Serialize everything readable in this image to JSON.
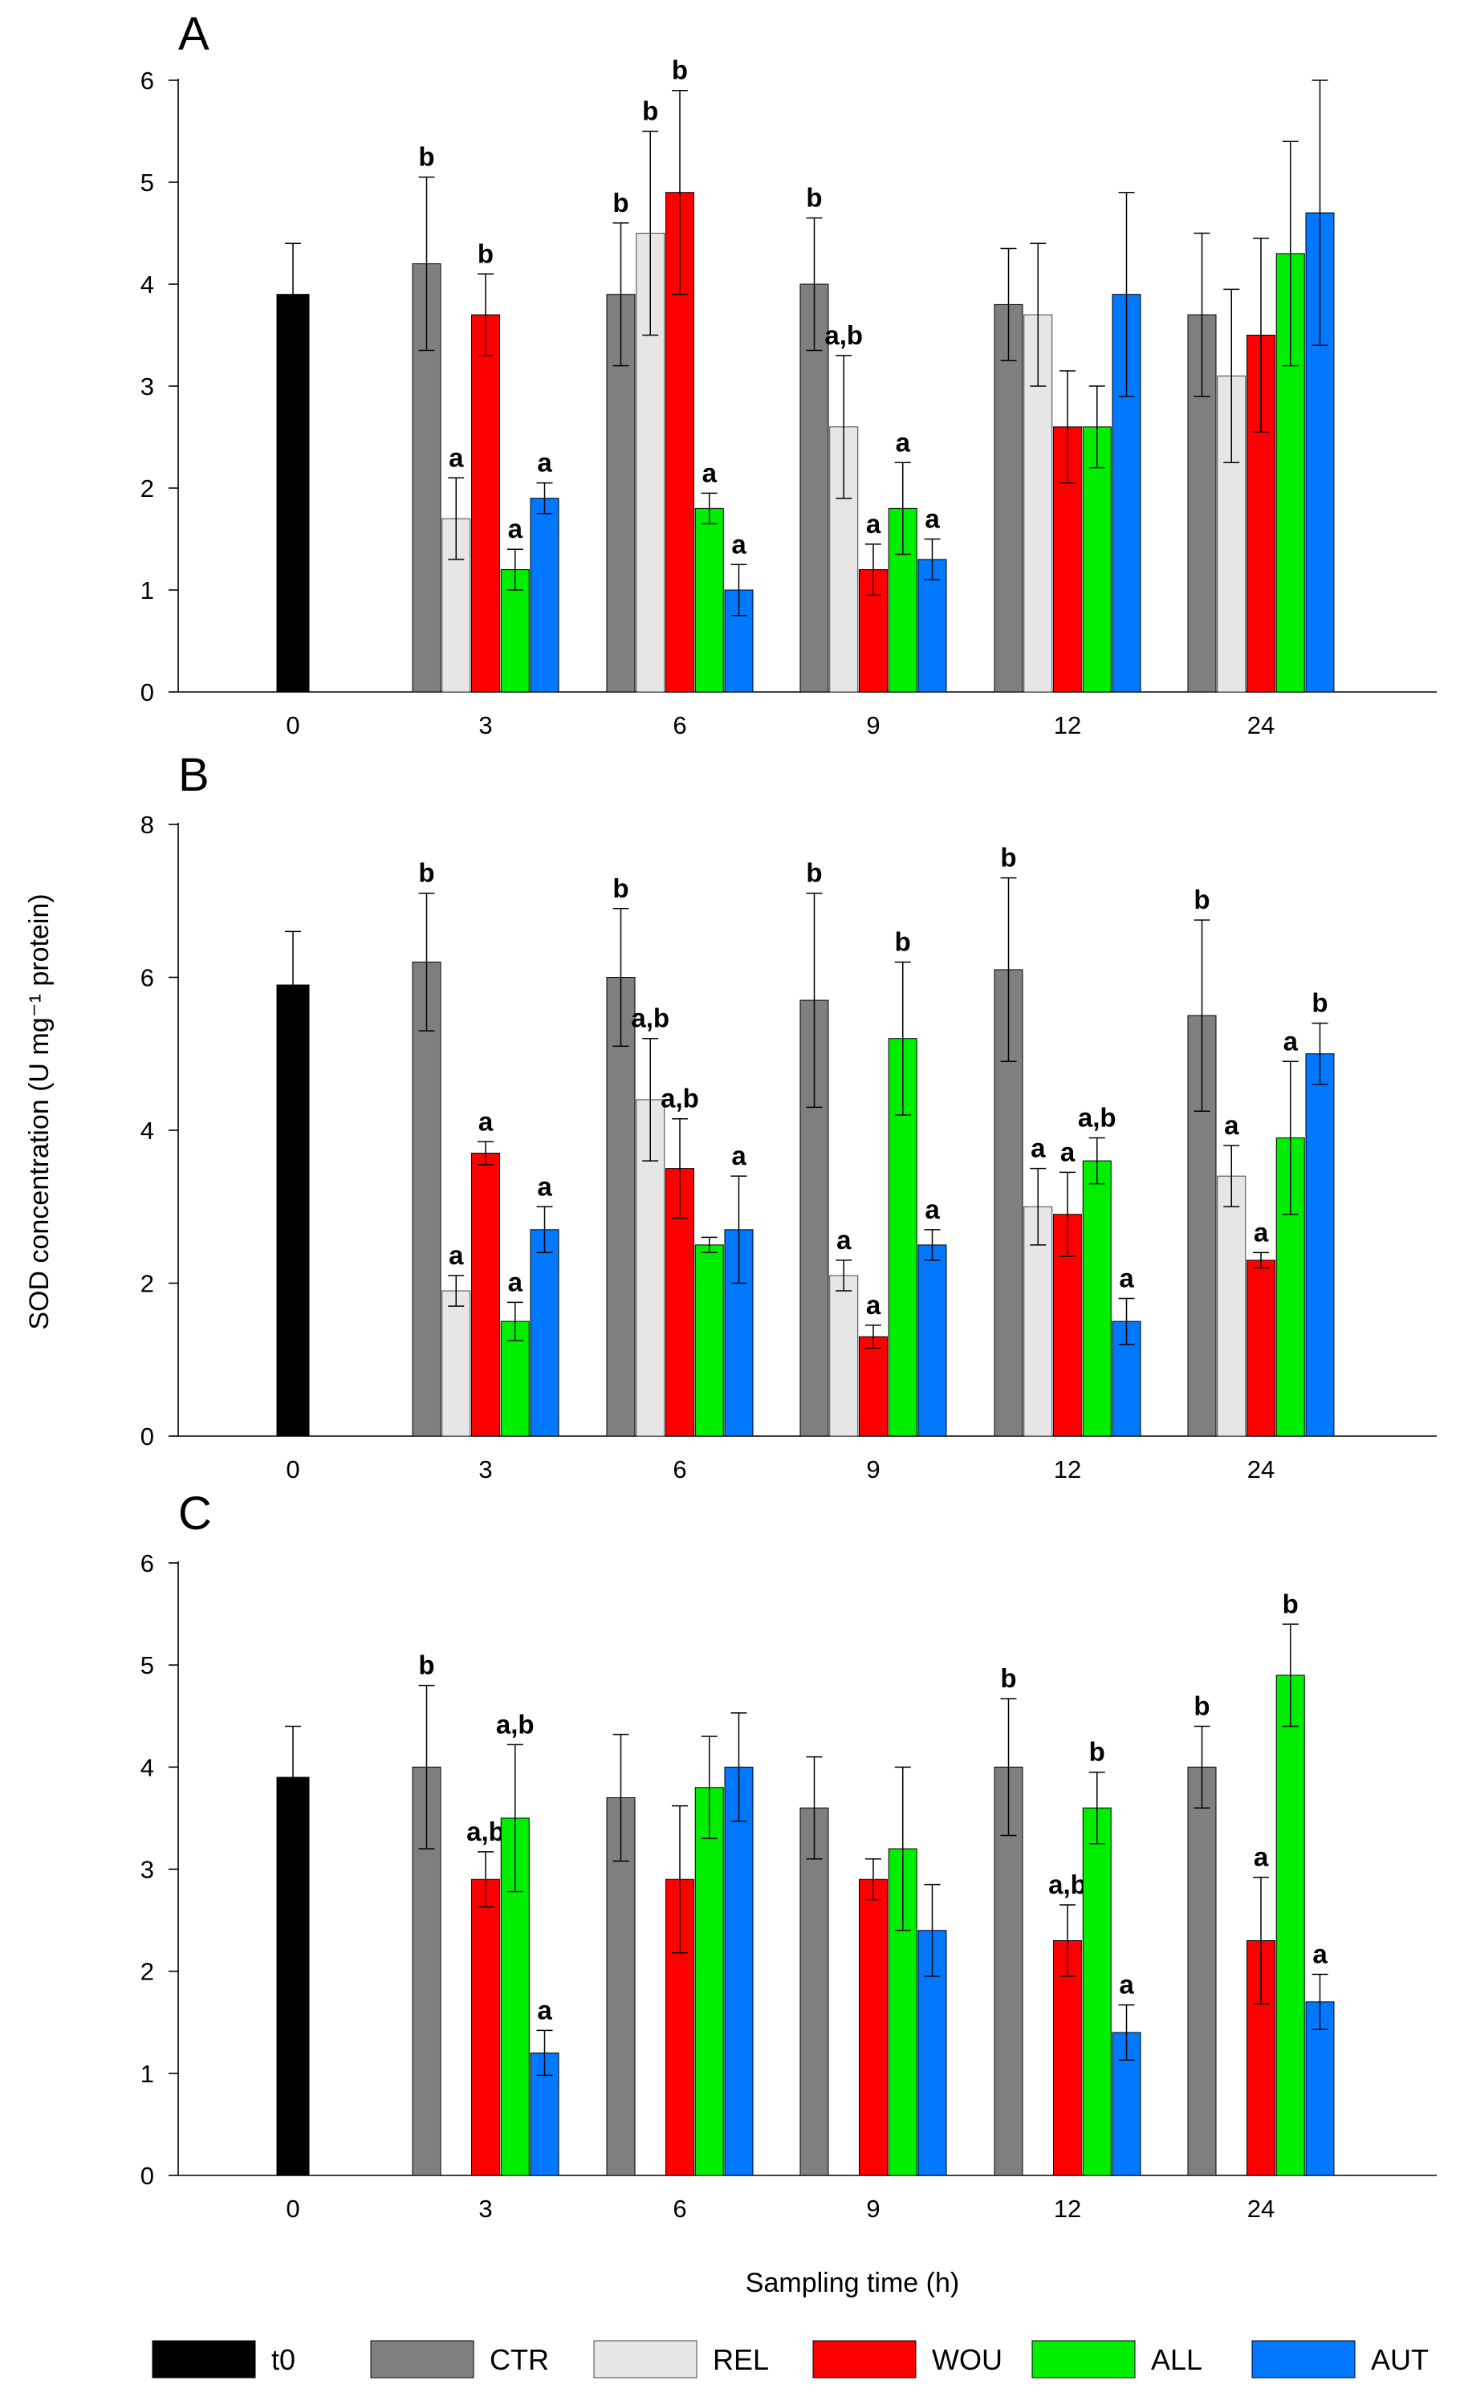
{
  "chart_data": [
    {
      "type": "bar",
      "panel": "A",
      "categories": [
        "0",
        "3",
        "6",
        "9",
        "12",
        "24"
      ],
      "ylim": [
        0,
        6
      ],
      "yticks": [
        0,
        1,
        2,
        3,
        4,
        5,
        6
      ],
      "series": [
        {
          "name": "t0",
          "values": [
            3.9,
            null,
            null,
            null,
            null,
            null
          ],
          "errors": [
            0.5,
            null,
            null,
            null,
            null,
            null
          ],
          "labels": [
            "",
            "",
            "",
            "",
            "",
            ""
          ]
        },
        {
          "name": "CTR",
          "values": [
            null,
            4.2,
            3.9,
            4.0,
            3.8,
            3.7
          ],
          "errors": [
            null,
            0.85,
            0.7,
            0.65,
            0.55,
            0.8
          ],
          "labels": [
            "",
            "b",
            "b",
            "b",
            "",
            ""
          ]
        },
        {
          "name": "REL",
          "values": [
            null,
            1.7,
            4.5,
            2.6,
            3.7,
            3.1
          ],
          "errors": [
            null,
            0.4,
            1.0,
            0.7,
            0.7,
            0.85
          ],
          "labels": [
            "",
            "a",
            "b",
            "a,b",
            "",
            ""
          ]
        },
        {
          "name": "WOU",
          "values": [
            null,
            3.7,
            4.9,
            1.2,
            2.6,
            3.5
          ],
          "errors": [
            null,
            0.4,
            1.0,
            0.25,
            0.55,
            0.95
          ],
          "labels": [
            "",
            "b",
            "b",
            "a",
            "",
            ""
          ]
        },
        {
          "name": "ALL",
          "values": [
            null,
            1.2,
            1.8,
            1.8,
            2.6,
            4.3
          ],
          "errors": [
            null,
            0.2,
            0.15,
            0.45,
            0.4,
            1.1
          ],
          "labels": [
            "",
            "a",
            "a",
            "a",
            "",
            ""
          ]
        },
        {
          "name": "AUT",
          "values": [
            null,
            1.9,
            1.0,
            1.3,
            3.9,
            4.7
          ],
          "errors": [
            null,
            0.15,
            0.25,
            0.2,
            1.0,
            1.3
          ],
          "labels": [
            "",
            "a",
            "a",
            "a",
            "",
            ""
          ]
        }
      ]
    },
    {
      "type": "bar",
      "panel": "B",
      "categories": [
        "0",
        "3",
        "6",
        "9",
        "12",
        "24"
      ],
      "ylim": [
        0,
        8
      ],
      "yticks": [
        0,
        2,
        4,
        6,
        8
      ],
      "series": [
        {
          "name": "t0",
          "values": [
            5.9,
            null,
            null,
            null,
            null,
            null
          ],
          "errors": [
            0.7,
            null,
            null,
            null,
            null,
            null
          ],
          "labels": [
            "",
            "",
            "",
            "",
            "",
            ""
          ]
        },
        {
          "name": "CTR",
          "values": [
            null,
            6.2,
            6.0,
            5.7,
            6.1,
            5.5
          ],
          "errors": [
            null,
            0.9,
            0.9,
            1.4,
            1.2,
            1.25
          ],
          "labels": [
            "",
            "b",
            "b",
            "b",
            "b",
            "b"
          ]
        },
        {
          "name": "REL",
          "values": [
            null,
            1.9,
            4.4,
            2.1,
            3.0,
            3.4
          ],
          "errors": [
            null,
            0.2,
            0.8,
            0.2,
            0.5,
            0.4
          ],
          "labels": [
            "",
            "a",
            "a,b",
            "a",
            "a",
            "a"
          ]
        },
        {
          "name": "WOU",
          "values": [
            null,
            3.7,
            3.5,
            1.3,
            2.9,
            2.3
          ],
          "errors": [
            null,
            0.15,
            0.65,
            0.15,
            0.55,
            0.1
          ],
          "labels": [
            "",
            "a",
            "a,b",
            "a",
            "a",
            "a"
          ]
        },
        {
          "name": "ALL",
          "values": [
            null,
            1.5,
            2.5,
            5.2,
            3.6,
            3.9
          ],
          "errors": [
            null,
            0.25,
            0.1,
            1.0,
            0.3,
            1.0
          ],
          "labels": [
            "",
            "a",
            "",
            "b",
            "a,b",
            "a"
          ]
        },
        {
          "name": "AUT",
          "values": [
            null,
            2.7,
            2.7,
            2.5,
            1.5,
            5.0
          ],
          "errors": [
            null,
            0.3,
            0.7,
            0.2,
            0.3,
            0.4
          ],
          "labels": [
            "",
            "a",
            "a",
            "a",
            "a",
            "b"
          ]
        }
      ]
    },
    {
      "type": "bar",
      "panel": "C",
      "categories": [
        "0",
        "3",
        "6",
        "9",
        "12",
        "24"
      ],
      "ylim": [
        0,
        6
      ],
      "yticks": [
        0,
        1,
        2,
        3,
        4,
        5,
        6
      ],
      "series": [
        {
          "name": "t0",
          "values": [
            3.9,
            null,
            null,
            null,
            null,
            null
          ],
          "errors": [
            0.5,
            null,
            null,
            null,
            null,
            null
          ],
          "labels": [
            "",
            "",
            "",
            "",
            "",
            ""
          ]
        },
        {
          "name": "CTR",
          "values": [
            null,
            4.0,
            3.7,
            3.6,
            4.0,
            4.0
          ],
          "errors": [
            null,
            0.8,
            0.62,
            0.5,
            0.67,
            0.4
          ],
          "labels": [
            "",
            "b",
            "",
            "",
            "b",
            "b"
          ]
        },
        {
          "name": "REL",
          "values": [
            null,
            null,
            null,
            null,
            null,
            null
          ],
          "errors": [
            null,
            null,
            null,
            null,
            null,
            null
          ],
          "labels": [
            "",
            "",
            "",
            "",
            "",
            ""
          ]
        },
        {
          "name": "WOU",
          "values": [
            null,
            2.9,
            2.9,
            2.9,
            2.3,
            2.3
          ],
          "errors": [
            null,
            0.27,
            0.72,
            0.2,
            0.35,
            0.62
          ],
          "labels": [
            "",
            "a,b",
            "",
            "",
            "a,b",
            "a"
          ]
        },
        {
          "name": "ALL",
          "values": [
            null,
            3.5,
            3.8,
            3.2,
            3.6,
            4.9
          ],
          "errors": [
            null,
            0.72,
            0.5,
            0.8,
            0.35,
            0.5
          ],
          "labels": [
            "",
            "a,b",
            "",
            "",
            "b",
            "b"
          ]
        },
        {
          "name": "AUT",
          "values": [
            null,
            1.2,
            4.0,
            2.4,
            1.4,
            1.7
          ],
          "errors": [
            null,
            0.22,
            0.53,
            0.45,
            0.27,
            0.27
          ],
          "labels": [
            "",
            "a",
            "",
            "",
            "a",
            "a"
          ]
        }
      ]
    }
  ],
  "ylabel": "SOD concentration (U mg⁻¹ protein)",
  "xlabel": "Sampling time (h)",
  "legend": [
    {
      "name": "t0",
      "color": "#000000"
    },
    {
      "name": "CTR",
      "color": "#7f7f7f"
    },
    {
      "name": "REL",
      "color": "#e6e6e6"
    },
    {
      "name": "WOU",
      "color": "#ff0000"
    },
    {
      "name": "ALL",
      "color": "#00ee00"
    },
    {
      "name": "AUT",
      "color": "#0078ff"
    }
  ]
}
